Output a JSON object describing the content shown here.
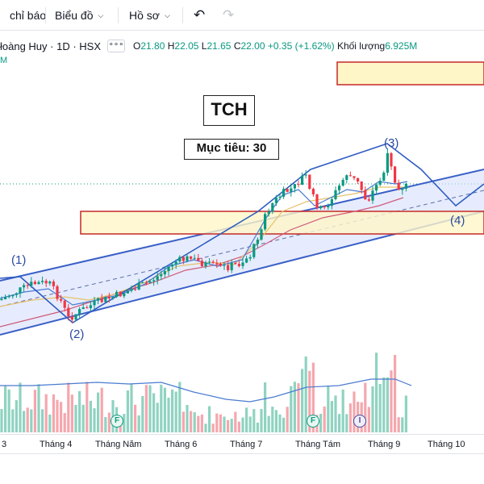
{
  "toolbar": {
    "indicators_label": "chỉ báo",
    "charts_label": "Biểu đồ",
    "profile_label": "Hồ sơ",
    "undo_icon": "undo-icon",
    "redo_icon": "redo-icon"
  },
  "legend": {
    "symbol": "łoàng Huy · 1D · HSX",
    "more": "∘∘∘",
    "o_label": "O",
    "o_value": "21.80",
    "h_label": "H",
    "h_value": "22.05",
    "l_label": "L",
    "l_value": "21.65",
    "c_label": "C",
    "c_value": "22.00",
    "change": "+0.35 (+1.62%)",
    "volume_label": "Khối lượng",
    "volume_value": "6.925M",
    "volume_sub": "M"
  },
  "annotations": {
    "ticker": "TCH",
    "target": "Mục tiêu: 30",
    "wave1": "(1)",
    "wave2": "(2)",
    "wave3": "(3)",
    "wave4": "(4)",
    "marker_f1": "F",
    "marker_f2": "F",
    "marker_i": "I"
  },
  "xaxis": {
    "ticks": [
      "3",
      "Tháng 4",
      "Tháng Năm",
      "Tháng 6",
      "Tháng 7",
      "Tháng Tám",
      "Tháng 9",
      "Tháng 10"
    ]
  },
  "colors": {
    "up": "#089981",
    "down": "#f23645",
    "channel": "#2962ff",
    "zone_border": "#d32f2f",
    "zone_fill": "#fff9c4"
  }
}
